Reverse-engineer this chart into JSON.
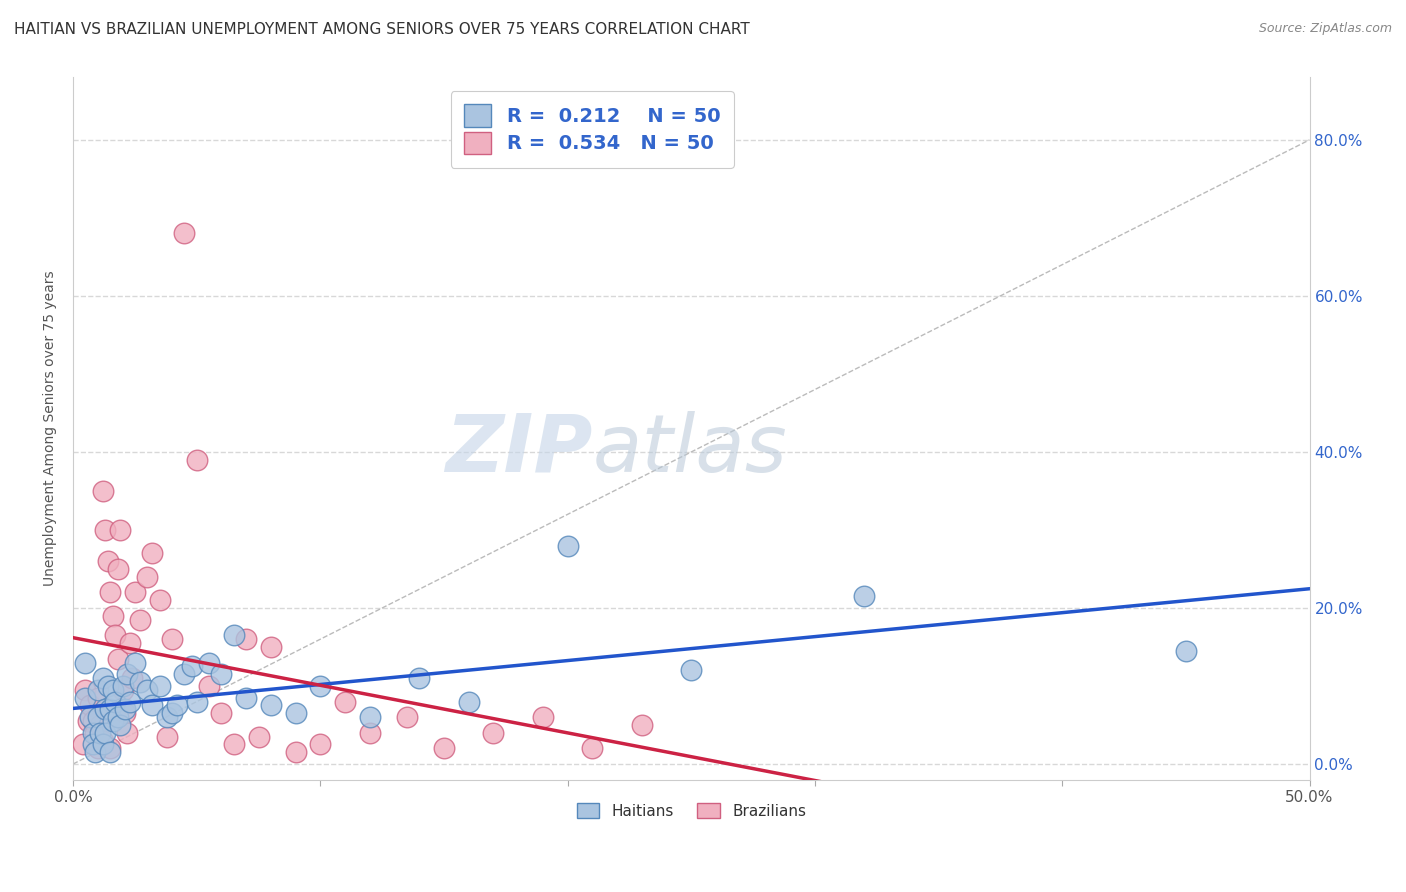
{
  "title": "HAITIAN VS BRAZILIAN UNEMPLOYMENT AMONG SENIORS OVER 75 YEARS CORRELATION CHART",
  "source": "Source: ZipAtlas.com",
  "ylabel": "Unemployment Among Seniors over 75 years",
  "xlim": [
    0.0,
    0.5
  ],
  "ylim": [
    -0.02,
    0.88
  ],
  "yticks": [
    0.0,
    0.2,
    0.4,
    0.6,
    0.8
  ],
  "yticklabels_right": [
    "0.0%",
    "20.0%",
    "40.0%",
    "60.0%",
    "80.0%"
  ],
  "xtick_left_label": "0.0%",
  "xtick_right_label": "50.0%",
  "background_color": "#ffffff",
  "grid_color": "#d8d8d8",
  "haitians_color": "#aac4e0",
  "haitians_edge": "#5588bb",
  "brazilians_color": "#f0b0c0",
  "brazilians_edge": "#d06080",
  "haitians_line_color": "#2255cc",
  "brazilians_line_color": "#cc2244",
  "ref_line_color": "#bbbbbb",
  "legend_R_haitian": "0.212",
  "legend_N_haitian": "50",
  "legend_R_brazilian": "0.534",
  "legend_N_brazilian": "50",
  "watermark_zip": "ZIP",
  "watermark_atlas": "atlas",
  "title_fontsize": 11,
  "label_fontsize": 10,
  "tick_fontsize": 11,
  "right_tick_color": "#3366cc",
  "haitians_x": [
    0.005,
    0.005,
    0.007,
    0.008,
    0.008,
    0.009,
    0.01,
    0.01,
    0.011,
    0.012,
    0.012,
    0.013,
    0.013,
    0.014,
    0.015,
    0.015,
    0.016,
    0.016,
    0.017,
    0.018,
    0.019,
    0.02,
    0.021,
    0.022,
    0.023,
    0.025,
    0.027,
    0.03,
    0.032,
    0.035,
    0.038,
    0.04,
    0.042,
    0.045,
    0.048,
    0.05,
    0.055,
    0.06,
    0.065,
    0.07,
    0.08,
    0.09,
    0.1,
    0.12,
    0.14,
    0.16,
    0.2,
    0.25,
    0.32,
    0.45
  ],
  "haitians_y": [
    0.13,
    0.085,
    0.06,
    0.04,
    0.025,
    0.015,
    0.095,
    0.06,
    0.04,
    0.025,
    0.11,
    0.07,
    0.04,
    0.1,
    0.07,
    0.015,
    0.095,
    0.055,
    0.08,
    0.06,
    0.05,
    0.1,
    0.07,
    0.115,
    0.08,
    0.13,
    0.105,
    0.095,
    0.075,
    0.1,
    0.06,
    0.065,
    0.075,
    0.115,
    0.125,
    0.08,
    0.13,
    0.115,
    0.165,
    0.085,
    0.075,
    0.065,
    0.1,
    0.06,
    0.11,
    0.08,
    0.28,
    0.12,
    0.215,
    0.145
  ],
  "brazilians_x": [
    0.004,
    0.005,
    0.006,
    0.007,
    0.008,
    0.009,
    0.01,
    0.01,
    0.011,
    0.012,
    0.012,
    0.013,
    0.014,
    0.015,
    0.015,
    0.016,
    0.017,
    0.018,
    0.018,
    0.019,
    0.02,
    0.021,
    0.022,
    0.023,
    0.024,
    0.025,
    0.027,
    0.03,
    0.032,
    0.035,
    0.038,
    0.04,
    0.045,
    0.05,
    0.055,
    0.06,
    0.065,
    0.07,
    0.075,
    0.08,
    0.09,
    0.1,
    0.11,
    0.12,
    0.135,
    0.15,
    0.17,
    0.19,
    0.21,
    0.23
  ],
  "brazilians_y": [
    0.025,
    0.095,
    0.055,
    0.075,
    0.055,
    0.04,
    0.02,
    0.085,
    0.05,
    0.03,
    0.35,
    0.3,
    0.26,
    0.22,
    0.02,
    0.19,
    0.165,
    0.25,
    0.135,
    0.3,
    0.095,
    0.065,
    0.04,
    0.155,
    0.11,
    0.22,
    0.185,
    0.24,
    0.27,
    0.21,
    0.035,
    0.16,
    0.68,
    0.39,
    0.1,
    0.065,
    0.025,
    0.16,
    0.035,
    0.15,
    0.015,
    0.025,
    0.08,
    0.04,
    0.06,
    0.02,
    0.04,
    0.06,
    0.02,
    0.05
  ]
}
